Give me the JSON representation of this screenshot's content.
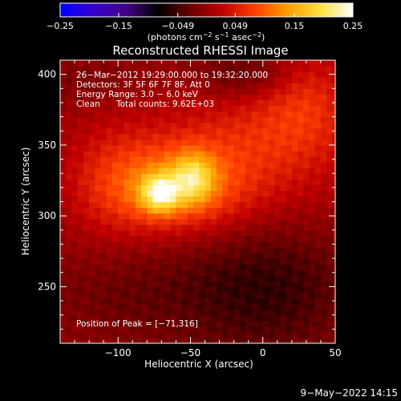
{
  "chart_data": {
    "type": "heatmap",
    "title": "Reconstructed RHESSI Image",
    "xlabel": "Heliocentric X (arcsec)",
    "ylabel": "Heliocentric Y (arcsec)",
    "xlim": [
      -140,
      50
    ],
    "ylim": [
      210,
      410
    ],
    "x_ticks": [
      -100,
      -50,
      0,
      50
    ],
    "y_ticks": [
      250,
      300,
      350,
      400
    ],
    "x_tick_labels": [
      "−100",
      "−50",
      "0",
      "50"
    ],
    "y_tick_labels": [
      "250",
      "300",
      "350",
      "400"
    ],
    "colorbar": {
      "min": -0.25,
      "max": 0.25,
      "ticks": [
        -0.25,
        -0.15,
        -0.049,
        0.049,
        0.15,
        0.25
      ],
      "tick_labels": [
        "−0.25",
        "−0.15",
        "−0.049",
        "0.049",
        "0.15",
        "0.25"
      ],
      "unit_label": "(photons cm",
      "unit_exp1": "−2",
      "unit_mid": " s",
      "unit_exp2": "−1",
      "unit_mid2": " asec",
      "unit_exp3": "−2",
      "unit_end": ")",
      "colormap": [
        "#0000ff",
        "#3300cc",
        "#440088",
        "#000000",
        "#6a0000",
        "#c00000",
        "#ff4000",
        "#ffa000",
        "#ffe040",
        "#ffffff"
      ]
    },
    "annotations": {
      "time_range": "26−Mar−2012 19:29:00.000 to 19:32:20.000",
      "detectors": "Detectors: 3F 5F 6F 7F 8F, Att 0",
      "energy_range": "Energy Range: 3.0 − 6.0 keV",
      "method": "Clean",
      "total_counts": "Total counts: 9.62E+03",
      "peak_label": "Position of Peak = ",
      "peak_value": "[−71,316]"
    },
    "peak": {
      "x": -71,
      "y": 316,
      "value": 0.25
    },
    "grid": "off",
    "pixel_size_arcsec": 4
  },
  "footer": {
    "timestamp": "9−May−2022 14:15"
  }
}
